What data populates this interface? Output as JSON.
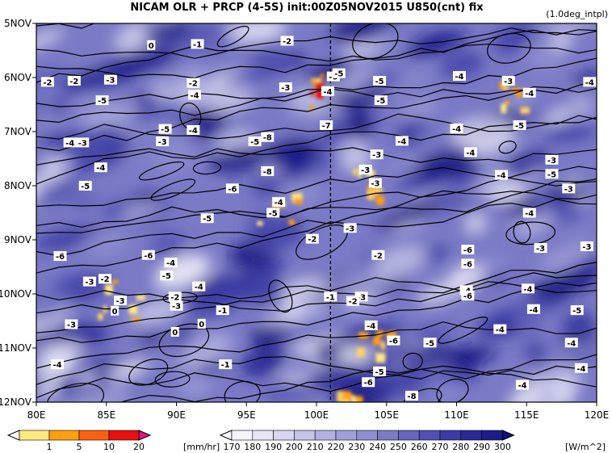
{
  "chart_data": {
    "type": "heatmap",
    "title": "NICAM  OLR + PRCP (4-5S) init:00Z05NOV2015  U850(cnt) fix",
    "note": "(1.0deg_intpl)",
    "x": {
      "min": 80,
      "max": 120,
      "ticks": [
        80,
        85,
        90,
        95,
        100,
        105,
        110,
        115,
        120
      ],
      "tick_labels": [
        "80E",
        "85E",
        "90E",
        "95E",
        "100E",
        "105E",
        "110E",
        "115E",
        "120E"
      ]
    },
    "y": {
      "min": 5,
      "max": 12,
      "reversed": true,
      "ticks": [
        5,
        6,
        7,
        8,
        9,
        10,
        11,
        12
      ],
      "tick_labels": [
        "5NOV",
        "6NOV",
        "7NOV",
        "8NOV",
        "9NOV",
        "10NOV",
        "11NOV",
        "12NOV"
      ]
    },
    "reference_line": {
      "x": 101,
      "style": "dashed"
    },
    "prcp_colorbar": {
      "levels": [
        "1",
        "5",
        "10",
        "20"
      ],
      "unit": "[mm/hr]",
      "colors": [
        "#ffffff",
        "#ffe880",
        "#ffa010",
        "#ff6010",
        "#e81010",
        "#e0108a"
      ]
    },
    "olr_colorbar": {
      "levels": [
        "170",
        "180",
        "190",
        "200",
        "210",
        "220",
        "230",
        "240",
        "250",
        "260",
        "270",
        "280",
        "290",
        "300"
      ],
      "unit": "[W/m^2]",
      "colors": [
        "#ffffff",
        "#f4f4fb",
        "#e6e6f5",
        "#d6d6ef",
        "#c4c4e8",
        "#b2b2e0",
        "#a0a0d8",
        "#8e8ed0",
        "#7a7ac6",
        "#6666bc",
        "#5050b0",
        "#3c3ca4",
        "#2a2a98",
        "#1c1c8a",
        "#10107a"
      ]
    },
    "contour_labels": [
      {
        "x": 80.8,
        "y": 6.08,
        "text": "-2"
      },
      {
        "x": 88.2,
        "y": 5.4,
        "text": "0"
      },
      {
        "x": 91.5,
        "y": 5.38,
        "text": "-1"
      },
      {
        "x": 97.9,
        "y": 5.32,
        "text": "-2"
      },
      {
        "x": 82.7,
        "y": 6.06,
        "text": "-2"
      },
      {
        "x": 85.3,
        "y": 6.04,
        "text": "-3"
      },
      {
        "x": 91.2,
        "y": 6.1,
        "text": "-2"
      },
      {
        "x": 91.3,
        "y": 6.32,
        "text": "-4"
      },
      {
        "x": 97.8,
        "y": 6.18,
        "text": "-3"
      },
      {
        "x": 100.8,
        "y": 6.25,
        "text": "-4"
      },
      {
        "x": 101.2,
        "y": 5.98,
        "text": "-6"
      },
      {
        "x": 101.6,
        "y": 5.92,
        "text": "-5"
      },
      {
        "x": 104.5,
        "y": 6.06,
        "text": "-5"
      },
      {
        "x": 104.6,
        "y": 6.42,
        "text": "-5"
      },
      {
        "x": 110.2,
        "y": 5.97,
        "text": "-4"
      },
      {
        "x": 113.7,
        "y": 6.06,
        "text": "-3"
      },
      {
        "x": 119.5,
        "y": 6.08,
        "text": "-4"
      },
      {
        "x": 115.2,
        "y": 6.28,
        "text": "-4"
      },
      {
        "x": 84.7,
        "y": 6.42,
        "text": "-5"
      },
      {
        "x": 100.7,
        "y": 6.88,
        "text": "-7"
      },
      {
        "x": 89.2,
        "y": 6.95,
        "text": "-5"
      },
      {
        "x": 91.2,
        "y": 6.97,
        "text": "-4"
      },
      {
        "x": 96.5,
        "y": 7.1,
        "text": "-8"
      },
      {
        "x": 95.6,
        "y": 7.18,
        "text": "-5"
      },
      {
        "x": 89.0,
        "y": 7.18,
        "text": "-3"
      },
      {
        "x": 82.4,
        "y": 7.2,
        "text": "-4"
      },
      {
        "x": 83.3,
        "y": 7.2,
        "text": "-3"
      },
      {
        "x": 110.0,
        "y": 6.94,
        "text": "-4"
      },
      {
        "x": 114.5,
        "y": 6.88,
        "text": "-5"
      },
      {
        "x": 106.1,
        "y": 7.17,
        "text": "-4"
      },
      {
        "x": 104.3,
        "y": 7.42,
        "text": "-3"
      },
      {
        "x": 111.0,
        "y": 7.38,
        "text": "-4"
      },
      {
        "x": 116.8,
        "y": 7.52,
        "text": "-3"
      },
      {
        "x": 84.6,
        "y": 7.66,
        "text": "-4"
      },
      {
        "x": 96.5,
        "y": 7.73,
        "text": "-8"
      },
      {
        "x": 103.5,
        "y": 7.7,
        "text": "-3"
      },
      {
        "x": 104.2,
        "y": 7.95,
        "text": "-3"
      },
      {
        "x": 113.2,
        "y": 7.8,
        "text": "-4"
      },
      {
        "x": 116.8,
        "y": 7.78,
        "text": "-5"
      },
      {
        "x": 83.5,
        "y": 8.0,
        "text": "-5"
      },
      {
        "x": 94.0,
        "y": 8.05,
        "text": "-6"
      },
      {
        "x": 118.0,
        "y": 8.05,
        "text": "-3"
      },
      {
        "x": 97.3,
        "y": 8.3,
        "text": "-4"
      },
      {
        "x": 96.9,
        "y": 8.5,
        "text": "-5"
      },
      {
        "x": 92.2,
        "y": 8.6,
        "text": "-5"
      },
      {
        "x": 115.2,
        "y": 8.5,
        "text": "-4"
      },
      {
        "x": 102.4,
        "y": 8.78,
        "text": "-3"
      },
      {
        "x": 99.7,
        "y": 8.98,
        "text": "-2"
      },
      {
        "x": 81.7,
        "y": 9.3,
        "text": "-6"
      },
      {
        "x": 88.0,
        "y": 9.28,
        "text": "-6"
      },
      {
        "x": 89.6,
        "y": 9.42,
        "text": "-4"
      },
      {
        "x": 110.8,
        "y": 9.18,
        "text": "-6"
      },
      {
        "x": 104.4,
        "y": 9.28,
        "text": "-2"
      },
      {
        "x": 116.0,
        "y": 9.15,
        "text": "-3"
      },
      {
        "x": 119.3,
        "y": 9.12,
        "text": "-3"
      },
      {
        "x": 110.8,
        "y": 9.44,
        "text": "-6"
      },
      {
        "x": 83.8,
        "y": 9.77,
        "text": "-3"
      },
      {
        "x": 84.9,
        "y": 9.72,
        "text": "-2"
      },
      {
        "x": 89.3,
        "y": 9.66,
        "text": "-5"
      },
      {
        "x": 91.6,
        "y": 9.86,
        "text": "-4"
      },
      {
        "x": 110.7,
        "y": 9.93,
        "text": "-4"
      },
      {
        "x": 115.1,
        "y": 9.9,
        "text": "-4"
      },
      {
        "x": 89.9,
        "y": 10.05,
        "text": "-2"
      },
      {
        "x": 86.0,
        "y": 10.12,
        "text": "-3"
      },
      {
        "x": 110.8,
        "y": 10.03,
        "text": "-6"
      },
      {
        "x": 101.0,
        "y": 10.05,
        "text": "-1"
      },
      {
        "x": 103.2,
        "y": 10.05,
        "text": "-3"
      },
      {
        "x": 102.6,
        "y": 10.13,
        "text": "-2"
      },
      {
        "x": 90.0,
        "y": 10.22,
        "text": "-3"
      },
      {
        "x": 85.6,
        "y": 10.31,
        "text": "0"
      },
      {
        "x": 93.3,
        "y": 10.3,
        "text": "-1"
      },
      {
        "x": 115.5,
        "y": 10.28,
        "text": "-4"
      },
      {
        "x": 118.6,
        "y": 10.3,
        "text": "-5"
      },
      {
        "x": 82.5,
        "y": 10.56,
        "text": "-3"
      },
      {
        "x": 91.8,
        "y": 10.55,
        "text": "0"
      },
      {
        "x": 89.9,
        "y": 10.7,
        "text": "0"
      },
      {
        "x": 103.9,
        "y": 10.58,
        "text": "-4"
      },
      {
        "x": 105.5,
        "y": 10.86,
        "text": "-6"
      },
      {
        "x": 108.1,
        "y": 10.9,
        "text": "-5"
      },
      {
        "x": 113.1,
        "y": 10.65,
        "text": "-4"
      },
      {
        "x": 118.2,
        "y": 10.9,
        "text": "-4"
      },
      {
        "x": 93.5,
        "y": 11.3,
        "text": "-1"
      },
      {
        "x": 81.5,
        "y": 11.3,
        "text": "-4"
      },
      {
        "x": 118.9,
        "y": 11.37,
        "text": "-4"
      },
      {
        "x": 104.5,
        "y": 11.43,
        "text": "-5"
      },
      {
        "x": 103.7,
        "y": 11.63,
        "text": "-6"
      },
      {
        "x": 114.7,
        "y": 11.68,
        "text": "-4"
      },
      {
        "x": 106.8,
        "y": 11.88,
        "text": "-8"
      }
    ]
  }
}
